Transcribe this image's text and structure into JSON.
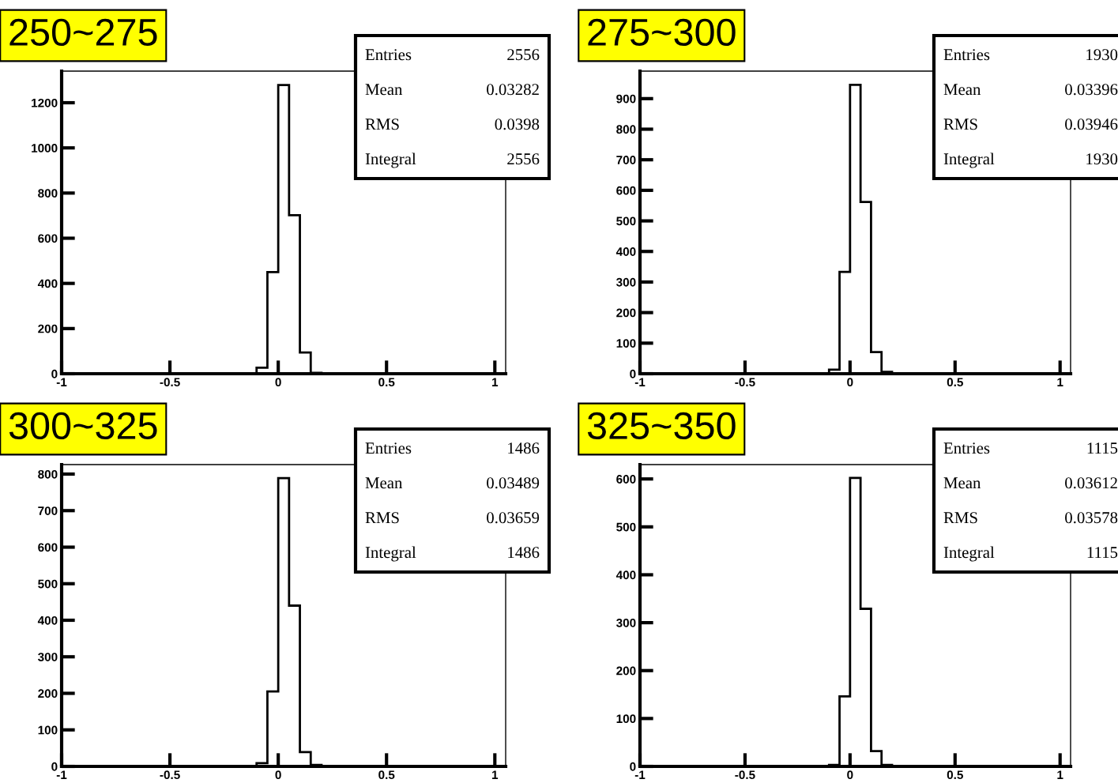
{
  "chart_data": [
    {
      "type": "histogram",
      "title": "250~275",
      "bins": [
        -0.1,
        -0.05,
        0,
        0.05,
        0.1,
        0.15,
        0.2
      ],
      "values": [
        27,
        450,
        1278,
        702,
        94,
        4
      ],
      "color": "#000000",
      "xlim": [
        -1,
        1.05
      ],
      "xticks": [
        -1,
        -0.5,
        0,
        0.5,
        1
      ],
      "ylim": [
        0,
        1340
      ],
      "yticks": [
        0,
        200,
        400,
        600,
        800,
        1000,
        1200
      ],
      "annotations": [
        "Entries",
        "2556",
        "Mean",
        "0.03282",
        "RMS",
        "0.0398",
        "Integral",
        "2556"
      ]
    },
    {
      "type": "histogram",
      "title": "275~300",
      "bins": [
        -0.1,
        -0.05,
        0,
        0.05,
        0.1,
        0.15,
        0.2
      ],
      "values": [
        13,
        333,
        945,
        562,
        71,
        6
      ],
      "color": "#000000",
      "xlim": [
        -1,
        1.05
      ],
      "xticks": [
        -1,
        -0.5,
        0,
        0.5,
        1
      ],
      "ylim": [
        0,
        990
      ],
      "yticks": [
        0,
        100,
        200,
        300,
        400,
        500,
        600,
        700,
        800,
        900
      ],
      "annotations": [
        "Entries",
        "1930",
        "Mean",
        "0.03396",
        "RMS",
        "0.03946",
        "Integral",
        "1930"
      ]
    },
    {
      "type": "histogram",
      "title": "300~325",
      "bins": [
        -0.1,
        -0.05,
        0,
        0.05,
        0.1,
        0.15,
        0.2
      ],
      "values": [
        9,
        205,
        789,
        440,
        39,
        4
      ],
      "color": "#000000",
      "xlim": [
        -1,
        1.05
      ],
      "xticks": [
        -1,
        -0.5,
        0,
        0.5,
        1
      ],
      "ylim": [
        0,
        826
      ],
      "yticks": [
        0,
        100,
        200,
        300,
        400,
        500,
        600,
        700,
        800
      ],
      "annotations": [
        "Entries",
        "1486",
        "Mean",
        "0.03489",
        "RMS",
        "0.03659",
        "Integral",
        "1486"
      ]
    },
    {
      "type": "histogram",
      "title": "325~350",
      "bins": [
        -0.1,
        -0.05,
        0,
        0.05,
        0.1,
        0.15,
        0.2
      ],
      "values": [
        3,
        146,
        602,
        329,
        32,
        3
      ],
      "color": "#000000",
      "xlim": [
        -1,
        1.05
      ],
      "xticks": [
        -1,
        -0.5,
        0,
        0.5,
        1
      ],
      "ylim": [
        0,
        630
      ],
      "yticks": [
        0,
        100,
        200,
        300,
        400,
        500,
        600
      ],
      "annotations": [
        "Entries",
        "1115",
        "Mean",
        "0.03612",
        "RMS",
        "0.03578",
        "Integral",
        "1115"
      ]
    }
  ]
}
